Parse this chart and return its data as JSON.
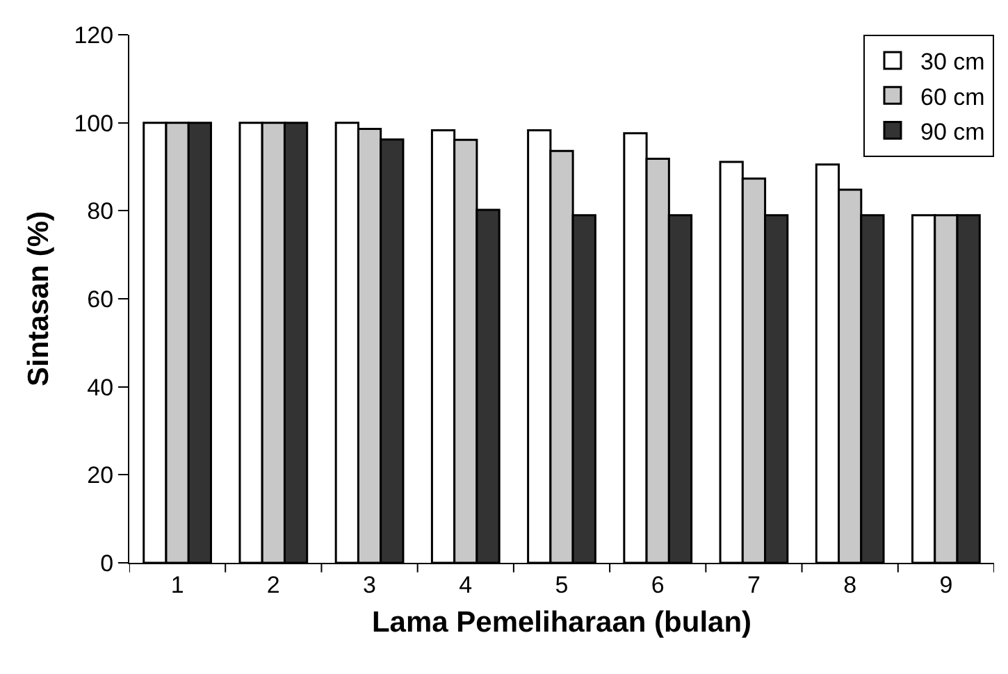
{
  "chart_data": {
    "type": "bar",
    "xlabel": "Lama Pemeliharaan (bulan)",
    "ylabel": "Sintasan (%)",
    "categories": [
      "1",
      "2",
      "3",
      "4",
      "5",
      "6",
      "7",
      "8",
      "9"
    ],
    "series": [
      {
        "name": "30 cm",
        "color": "#ffffff",
        "values": [
          100,
          100,
          100,
          98.3,
          98.3,
          97.6,
          91.1,
          90.5,
          79
        ]
      },
      {
        "name": "60 cm",
        "color": "#c8c8c8",
        "values": [
          100,
          100,
          98.6,
          96.1,
          93.6,
          91.8,
          87.3,
          84.8,
          79
        ]
      },
      {
        "name": "90 cm",
        "color": "#333333",
        "values": [
          100,
          100,
          96.2,
          80.2,
          79,
          79,
          79,
          79,
          79
        ]
      }
    ],
    "ylim": [
      0,
      120
    ],
    "yticks": [
      0,
      20,
      40,
      60,
      80,
      100,
      120
    ],
    "grid": false,
    "legend": "top right"
  }
}
